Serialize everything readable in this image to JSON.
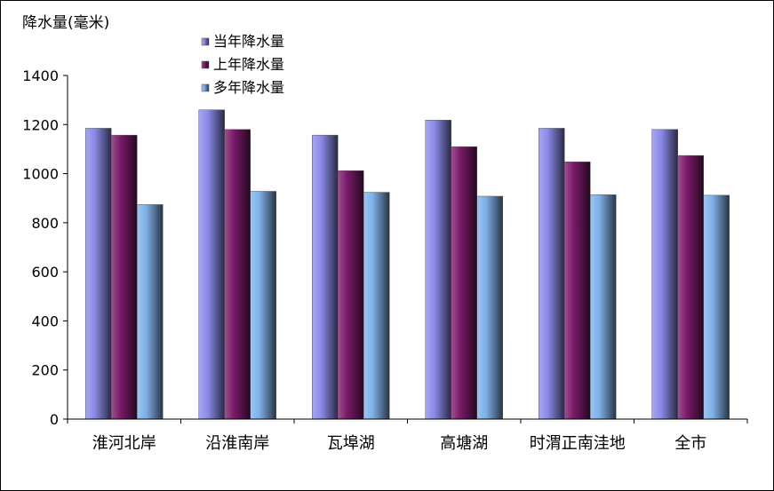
{
  "chart_data": {
    "type": "bar",
    "ylabel": "降水量(毫米)",
    "categories": [
      "淮河北岸",
      "沿淮南岸",
      "瓦埠湖",
      "高塘湖",
      "时渭正南洼地",
      "全市"
    ],
    "series": [
      {
        "name": "当年降水量",
        "values": [
          1185,
          1260,
          1157,
          1218,
          1185,
          1180
        ],
        "color": "#8a8ae8"
      },
      {
        "name": "上年降水量",
        "values": [
          1157,
          1180,
          1012,
          1110,
          1048,
          1074
        ],
        "color": "#7a1a6a"
      },
      {
        "name": "多年降水量",
        "values": [
          874,
          928,
          924,
          908,
          914,
          912
        ],
        "color": "#7fb0e8"
      }
    ],
    "ylim": [
      0,
      1400
    ],
    "yticks": [
      0,
      200,
      400,
      600,
      800,
      1000,
      1200,
      1400
    ],
    "grid": false,
    "legend_position": "top-left"
  }
}
